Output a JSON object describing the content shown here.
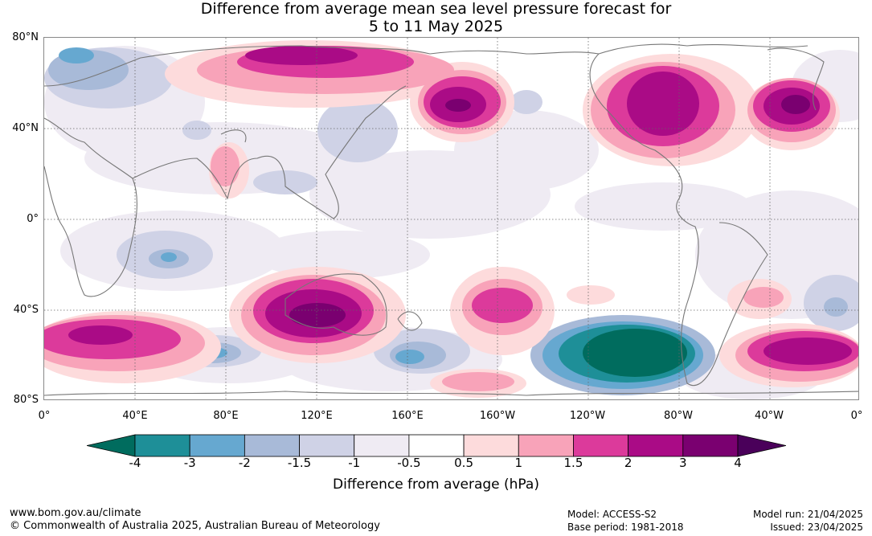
{
  "title_line1": "Difference from average mean sea level pressure forecast for",
  "title_line2": "5 to 11 May 2025",
  "lat_labels": [
    "80°N",
    "40°N",
    "0°",
    "40°S",
    "80°S"
  ],
  "lon_labels": [
    "0°",
    "40°E",
    "80°E",
    "120°E",
    "160°E",
    "160°W",
    "120°W",
    "80°W",
    "40°W",
    "0°"
  ],
  "colorbar": {
    "ticks": [
      "-4",
      "-3",
      "-2",
      "-1.5",
      "-1",
      "-0.5",
      "0.5",
      "1",
      "1.5",
      "2",
      "3",
      "4"
    ],
    "colors": [
      "#006c5e",
      "#1e8f98",
      "#66a8d0",
      "#a8bad8",
      "#cfd2e6",
      "#efebf3",
      "#ffffff",
      "#fddbdc",
      "#f8a3b9",
      "#dc3a9b",
      "#aa0b86",
      "#7a0070",
      "#4a005a"
    ],
    "label": "Difference from average (hPa)"
  },
  "footer": {
    "website": "www.bom.gov.au/climate",
    "copyright": "© Commonwealth of Australia 2025, Australian Bureau of Meteorology",
    "model": "Model: ACCESS-S2",
    "base_period": "Base period: 1981-2018",
    "model_run": "Model run: 21/04/2025",
    "issued": "Issued: 23/04/2025"
  }
}
